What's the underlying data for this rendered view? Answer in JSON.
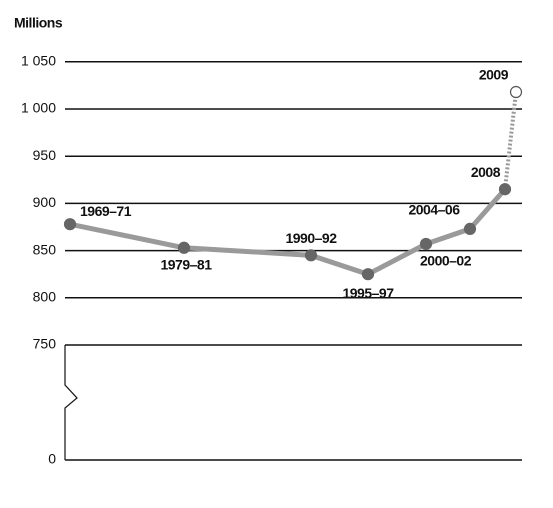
{
  "chart_data": {
    "type": "line",
    "y_label": "Millions",
    "categories": [
      "1969–71",
      "1979–81",
      "1990–92",
      "1995–97",
      "2000–02",
      "2004–06",
      "2008",
      "2009"
    ],
    "series": [
      {
        "color": "#9a9a9a",
        "marker_color": "#666666",
        "values": [
          878,
          853,
          845,
          825,
          857,
          873,
          915,
          1018
        ]
      }
    ],
    "ylim": [
      0,
      1050
    ],
    "yticks": [
      0,
      750,
      800,
      850,
      900,
      950,
      {
        "value": 1000,
        "label": "1 000"
      },
      {
        "value": 1050,
        "label": "1 050"
      }
    ],
    "grid": true,
    "axis_break": true
  }
}
